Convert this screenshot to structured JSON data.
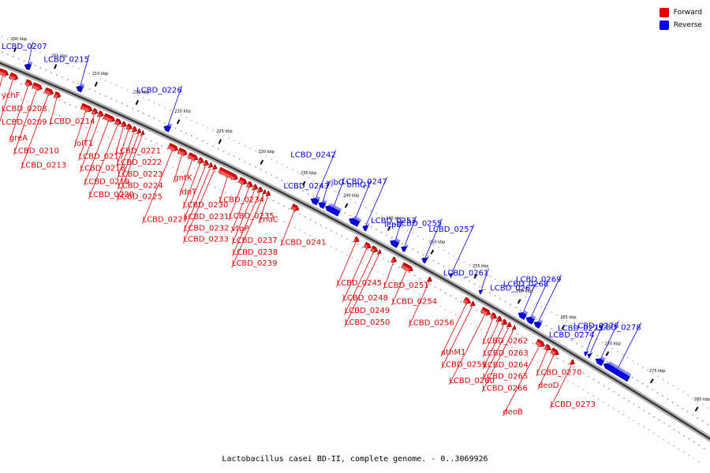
{
  "caption": "Lactobacillus casei BD-II, complete genome. - 0..3069926",
  "colors": {
    "forward": "#e00000",
    "reverse": "#0000e0",
    "backbone": "#333333"
  },
  "legend": [
    {
      "label": "Forward",
      "strand": "forward",
      "color": "#e00000"
    },
    {
      "label": "Reverse",
      "strand": "reverse",
      "color": "#0000e0"
    }
  ],
  "map": {
    "start_kbp": 198,
    "end_kbp": 283,
    "tick_labels": [
      "200 kbp",
      "205 kbp",
      "210 kbp",
      "215 kbp",
      "220 kbp",
      "225 kbp",
      "230 kbp",
      "235 kbp",
      "240 kbp",
      "245 kbp",
      "250 kbp",
      "255 kbp",
      "260 kbp",
      "265 kbp",
      "270 kbp",
      "275 kbp",
      "280 kbp"
    ],
    "tick_values_kbp": [
      200,
      205,
      210,
      215,
      220,
      225,
      230,
      235,
      240,
      245,
      250,
      255,
      260,
      265,
      270,
      275,
      280
    ]
  },
  "genes": [
    {
      "name": "ychF",
      "strand": "forward",
      "start": 198.2,
      "end": 199.2
    },
    {
      "name": "LCBD_0208",
      "strand": "forward",
      "start": 199.3,
      "end": 200.4
    },
    {
      "name": "LCBD_0209",
      "strand": "forward",
      "start": 200.6,
      "end": 201.6
    },
    {
      "name": "LCBD_0207",
      "strand": "reverse",
      "start": 201.7,
      "end": 202.4
    },
    {
      "name": "greA",
      "strand": "forward",
      "start": 202.6,
      "end": 203.4
    },
    {
      "name": "LCBD_0210",
      "strand": "forward",
      "start": 203.5,
      "end": 204.6
    },
    {
      "name": "LCBD_0213",
      "strand": "forward",
      "start": 205.0,
      "end": 206.0
    },
    {
      "name": "LCBD_0214",
      "strand": "forward",
      "start": 206.2,
      "end": 206.9
    },
    {
      "name": "LCBD_0215",
      "strand": "reverse",
      "start": 208.1,
      "end": 208.8
    },
    {
      "name": "iolT1",
      "strand": "forward",
      "start": 209.5,
      "end": 210.8
    },
    {
      "name": "LCBD_0217",
      "strand": "forward",
      "start": 210.9,
      "end": 211.5
    },
    {
      "name": "LCBD_0218",
      "strand": "forward",
      "start": 211.6,
      "end": 212.2
    },
    {
      "name": "LCBD_0219",
      "strand": "forward",
      "start": 212.3,
      "end": 213.6
    },
    {
      "name": "LCBD_0220",
      "strand": "forward",
      "start": 213.7,
      "end": 214.4
    },
    {
      "name": "LCBD_0221",
      "strand": "forward",
      "start": 214.5,
      "end": 215.0
    },
    {
      "name": "LCBD_0222",
      "strand": "forward",
      "start": 215.1,
      "end": 215.7
    },
    {
      "name": "LCBD_0223",
      "strand": "forward",
      "start": 215.8,
      "end": 216.3
    },
    {
      "name": "LCBD_0224",
      "strand": "forward",
      "start": 216.4,
      "end": 216.8
    },
    {
      "name": "LCBD_0225",
      "strand": "forward",
      "start": 216.9,
      "end": 217.2
    },
    {
      "name": "LCBD_0226",
      "strand": "reverse",
      "start": 218.8,
      "end": 219.5
    },
    {
      "name": "LCBD_0227",
      "strand": "forward",
      "start": 220.2,
      "end": 221.3
    },
    {
      "name": "gntK",
      "strand": "forward",
      "start": 221.4,
      "end": 222.4
    },
    {
      "name": "idnT",
      "strand": "forward",
      "start": 222.6,
      "end": 223.7
    },
    {
      "name": "LCBD_0230",
      "strand": "forward",
      "start": 223.8,
      "end": 224.4
    },
    {
      "name": "LCBD_0231",
      "strand": "forward",
      "start": 224.5,
      "end": 225.0
    },
    {
      "name": "LCBD_0232",
      "strand": "forward",
      "start": 225.1,
      "end": 225.5
    },
    {
      "name": "LCBD_0233",
      "strand": "forward",
      "start": 225.6,
      "end": 226.0
    },
    {
      "name": "LCBD_0234",
      "strand": "forward",
      "start": 226.3,
      "end": 228.5
    },
    {
      "name": "LCBD_0235",
      "strand": "forward",
      "start": 228.7,
      "end": 229.6
    },
    {
      "name": "vtgP",
      "strand": "forward",
      "start": 229.7,
      "end": 230.3
    },
    {
      "name": "LCBD_0237",
      "strand": "forward",
      "start": 230.4,
      "end": 230.9
    },
    {
      "name": "LCBD_0238",
      "strand": "forward",
      "start": 231.0,
      "end": 231.5
    },
    {
      "name": "LCBD_0239",
      "strand": "forward",
      "start": 231.6,
      "end": 231.9
    },
    {
      "name": "znuC",
      "strand": "forward",
      "start": 232.0,
      "end": 232.4
    },
    {
      "name": "LCBD_0241",
      "strand": "forward",
      "start": 235.0,
      "end": 235.8
    },
    {
      "name": "LCBD_0242",
      "strand": "reverse",
      "start": 236.4,
      "end": 237.2
    },
    {
      "name": "LCBD_0243",
      "strand": "reverse",
      "start": 237.3,
      "end": 238.0
    },
    {
      "name": "yjbG",
      "strand": "reverse",
      "start": 238.1,
      "end": 239.7
    },
    {
      "name": "brnQ1",
      "strand": "reverse",
      "start": 240.9,
      "end": 242.0
    },
    {
      "name": "LCBD_0245",
      "strand": "forward",
      "start": 242.4,
      "end": 242.9
    },
    {
      "name": "LCBD_0247",
      "strand": "reverse",
      "start": 242.5,
      "end": 243.0
    },
    {
      "name": "LCBD_0248",
      "strand": "forward",
      "start": 243.6,
      "end": 244.3
    },
    {
      "name": "LCBD_0249",
      "strand": "forward",
      "start": 244.4,
      "end": 245.1
    },
    {
      "name": "LCBD_0250",
      "strand": "forward",
      "start": 245.2,
      "end": 245.5
    },
    {
      "name": "lepB",
      "strand": "reverse",
      "start": 245.7,
      "end": 246.6
    },
    {
      "name": "LCBD_0251",
      "strand": "forward",
      "start": 246.8,
      "end": 247.3
    },
    {
      "name": "LCBD_0253",
      "strand": "reverse",
      "start": 247.0,
      "end": 247.5
    },
    {
      "name": "LCBD_0254",
      "strand": "forward",
      "start": 248.0,
      "end": 249.2
    },
    {
      "name": "LCBD_0255",
      "strand": "reverse",
      "start": 249.4,
      "end": 249.9
    },
    {
      "name": "LCBD_0256",
      "strand": "forward",
      "start": 251.0,
      "end": 251.4
    },
    {
      "name": "LCBD_0257",
      "strand": "reverse",
      "start": 252.6,
      "end": 252.9
    },
    {
      "name": "athM1",
      "strand": "forward",
      "start": 255.2,
      "end": 255.9
    },
    {
      "name": "LCBD_0259",
      "strand": "forward",
      "start": 256.0,
      "end": 256.4
    },
    {
      "name": "LCBD_0261",
      "strand": "reverse",
      "start": 256.0,
      "end": 256.3
    },
    {
      "name": "LCBD_0260",
      "strand": "forward",
      "start": 257.2,
      "end": 258.2
    },
    {
      "name": "LCBD_0262",
      "strand": "forward",
      "start": 258.3,
      "end": 258.9
    },
    {
      "name": "LCBD_0263",
      "strand": "forward",
      "start": 259.0,
      "end": 259.5
    },
    {
      "name": "LCBD_0264",
      "strand": "forward",
      "start": 259.6,
      "end": 260.1
    },
    {
      "name": "LCBD_0265",
      "strand": "forward",
      "start": 260.2,
      "end": 260.6
    },
    {
      "name": "LCBD_0267",
      "strand": "reverse",
      "start": 260.5,
      "end": 261.3
    },
    {
      "name": "LCBD_0266",
      "strand": "forward",
      "start": 260.8,
      "end": 261.1
    },
    {
      "name": "LCBD_0268",
      "strand": "reverse",
      "start": 261.4,
      "end": 262.2
    },
    {
      "name": "LCBD_0269",
      "strand": "reverse",
      "start": 262.3,
      "end": 263.0
    },
    {
      "name": "deoB",
      "strand": "forward",
      "start": 263.5,
      "end": 264.4
    },
    {
      "name": "LCBD_0270",
      "strand": "forward",
      "start": 264.5,
      "end": 265.1
    },
    {
      "name": "deoD",
      "strand": "forward",
      "start": 265.2,
      "end": 266.0
    },
    {
      "name": "LCBD_0273",
      "strand": "forward",
      "start": 267.4,
      "end": 267.8
    },
    {
      "name": "LCBD_0274",
      "strand": "reverse",
      "start": 268.0,
      "end": 268.3
    },
    {
      "name": "LCBD_0275",
      "strand": "reverse",
      "start": 268.4,
      "end": 268.7
    },
    {
      "name": "LCBD_0276",
      "strand": "reverse",
      "start": 269.3,
      "end": 270.1
    },
    {
      "name": "LCBD_0278",
      "strand": "reverse",
      "start": 270.2,
      "end": 273.0
    }
  ]
}
